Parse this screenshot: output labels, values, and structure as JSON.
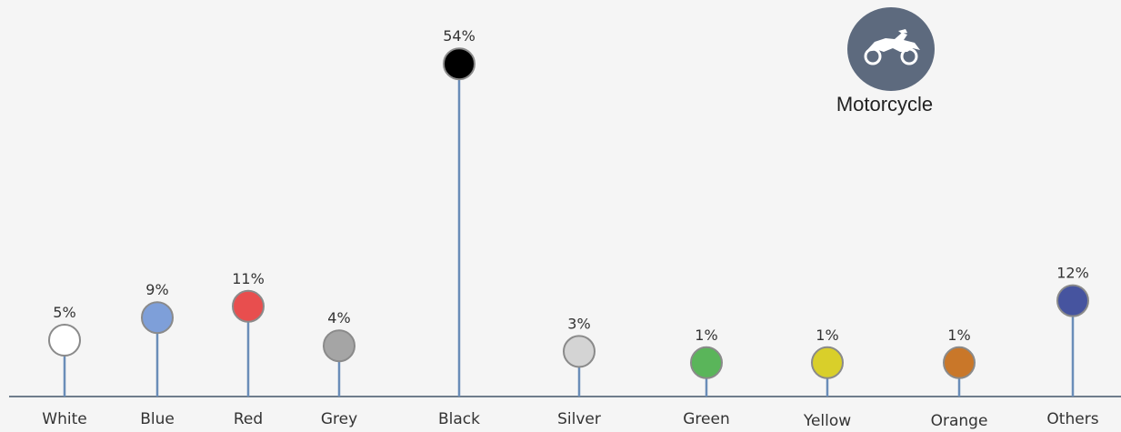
{
  "badge": {
    "icon": "motorcycle-icon",
    "label": "Motorcycle",
    "color": "#5d6a7e"
  },
  "chart_data": {
    "type": "lollipop",
    "categories": [
      "White",
      "Blue",
      "Red",
      "Grey",
      "Black",
      "Silver",
      "Green",
      "Yellow",
      "Orange",
      "Others"
    ],
    "values": [
      5,
      9,
      11,
      4,
      54,
      3,
      1,
      1,
      1,
      12
    ],
    "value_labels": [
      "5%",
      "9%",
      "11%",
      "4%",
      "54%",
      "3%",
      "1%",
      "1%",
      "1%",
      "12%"
    ],
    "unit": "%",
    "colors": [
      "#ffffff",
      "#7e9fd9",
      "#e84e4e",
      "#a5a5a5",
      "#000000",
      "#d4d4d4",
      "#5ab55a",
      "#d9cf2a",
      "#c97729",
      "#46549f"
    ],
    "stem_color": "#6a8db8",
    "axis_color": "#6f7d8c",
    "marker_stroke": "#8a8a8a",
    "grid": false,
    "legend": "none"
  }
}
